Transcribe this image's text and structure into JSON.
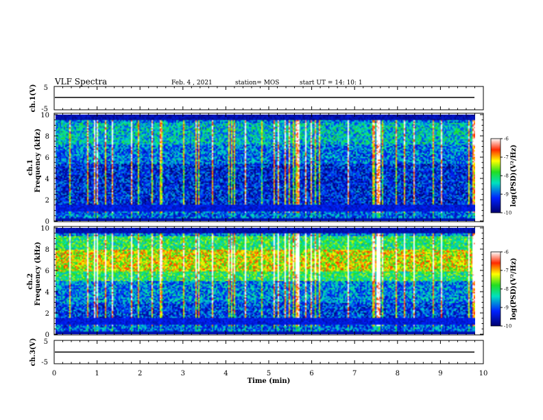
{
  "header": {
    "title": "VLF Spectra",
    "date": "Feb. 4 , 2021",
    "station": "station= MOS",
    "start": "start UT =  14: 10: 1"
  },
  "chart_data": [
    {
      "type": "line",
      "panel": "waveform-ch1",
      "ylabel": "ch.1(V)",
      "ylim": [
        -5,
        5
      ],
      "yticks": [
        "5",
        "-5"
      ],
      "x": [
        0,
        10
      ],
      "values": [
        0,
        0
      ]
    },
    {
      "type": "heatmap",
      "panel": "spectrogram-ch1",
      "ylabel_top": "ch.1",
      "ylabel": "Frequency (kHz)",
      "ylim": [
        0,
        10
      ],
      "yticks": [
        "0",
        "2",
        "4",
        "6",
        "8",
        "10"
      ],
      "xlim": [
        0,
        10
      ],
      "colorbar": {
        "min": -10,
        "max": -6,
        "ticks": [
          "-6",
          "-7",
          "-8",
          "-9",
          "-10"
        ],
        "label": "log(PSD)(V²/Hz)"
      }
    },
    {
      "type": "heatmap",
      "panel": "spectrogram-ch2",
      "ylabel_top": "ch.2",
      "ylabel": "Frequency (kHz)",
      "ylim": [
        0,
        10
      ],
      "yticks": [
        "0",
        "2",
        "4",
        "6",
        "8",
        "10"
      ],
      "xlim": [
        0,
        10
      ],
      "colorbar": {
        "min": -10,
        "max": -6,
        "ticks": [
          "-6",
          "-7",
          "-8",
          "-9",
          "-10"
        ],
        "label": "log(PSD)(V²/Hz)"
      }
    },
    {
      "type": "line",
      "panel": "waveform-ch3",
      "ylabel": "ch.3(V)",
      "ylim": [
        -5,
        5
      ],
      "yticks": [
        "5",
        "-5"
      ],
      "x": [
        0,
        10
      ],
      "values": [
        0,
        0
      ]
    }
  ],
  "xaxis": {
    "label": "Time (min)",
    "ticks": [
      "0",
      "1",
      "2",
      "3",
      "4",
      "5",
      "6",
      "7",
      "8",
      "9",
      "10"
    ]
  }
}
